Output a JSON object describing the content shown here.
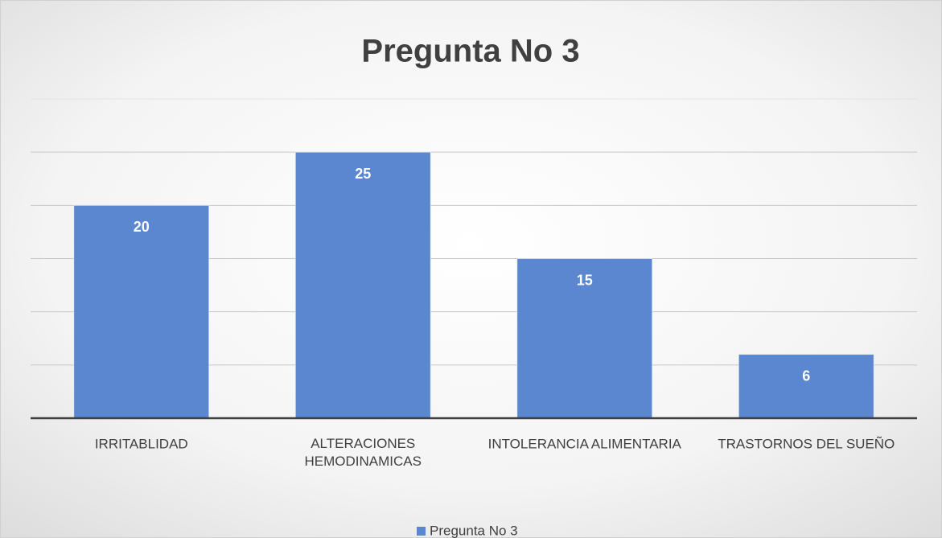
{
  "chart_data": {
    "type": "bar",
    "title": "Pregunta No 3",
    "categories": [
      "IRRITABLIDAD",
      "ALTERACIONES HEMODINAMICAS",
      "INTOLERANCIA ALIMENTARIA",
      "TRASTORNOS DEL SUEÑO"
    ],
    "series": [
      {
        "name": "Pregunta No 3",
        "color": "#5b87d0",
        "values": [
          20,
          25,
          15,
          6
        ]
      }
    ],
    "ylim": [
      0,
      30
    ],
    "yticks": [
      0,
      5,
      10,
      15,
      20,
      25,
      30
    ],
    "grid": true,
    "legend": "bottom"
  }
}
